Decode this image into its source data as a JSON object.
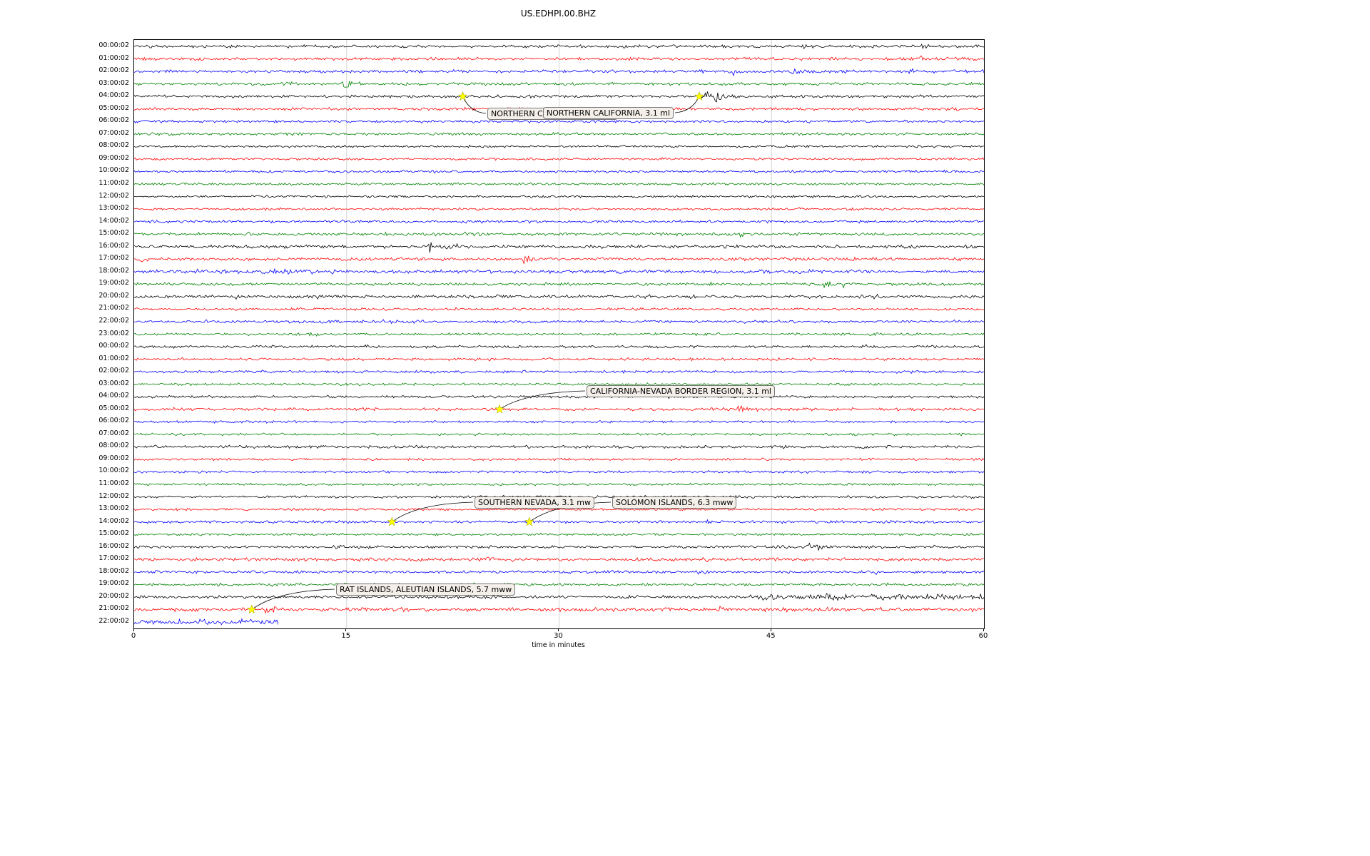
{
  "chart_data": {
    "type": "line",
    "subtype": "seismogram-helicorder",
    "title": "US.EDHPI.00.BHZ",
    "xlabel": "time in minutes",
    "xlim": [
      0,
      60
    ],
    "xticks": [
      0,
      15,
      30,
      45,
      60
    ],
    "grid": "vertical-only",
    "trace_colors": [
      "#000000",
      "#ff0000",
      "#0000ff",
      "#008000"
    ],
    "marker_color": "#ffff00",
    "rows": [
      {
        "label": "00:00:02",
        "noise": 1.1,
        "spikes": [
          [
            47.3,
            2.5,
            0.4
          ],
          [
            55.6,
            3.5,
            0.5
          ],
          [
            57.6,
            2.5,
            0.3
          ]
        ]
      },
      {
        "label": "01:00:02",
        "noise": 1.1,
        "spikes": [
          [
            52.0,
            2.5,
            0.4
          ],
          [
            55.4,
            4,
            0.6
          ],
          [
            57.5,
            3.5,
            0.5
          ]
        ]
      },
      {
        "label": "02:00:02",
        "noise": 1.1,
        "spikes": [
          [
            42.3,
            3.5,
            0.5
          ],
          [
            46.5,
            3,
            0.8
          ],
          [
            47.8,
            2.5,
            0.5
          ],
          [
            54.8,
            3,
            0.4
          ],
          [
            57.7,
            3,
            0.5
          ]
        ]
      },
      {
        "label": "03:00:02",
        "noise": 1.1,
        "spikes": [
          [
            10.4,
            2,
            0.5
          ],
          [
            14.8,
            6.5,
            0.5
          ]
        ]
      },
      {
        "label": "04:00:02",
        "noise": 1.1,
        "spikes": [
          [
            40.5,
            14,
            0.7
          ]
        ]
      },
      {
        "label": "05:00:02",
        "noise": 1.1,
        "spikes": [
          [
            27.1,
            6,
            0.3
          ]
        ]
      },
      {
        "label": "06:00:02",
        "noise": 1.0,
        "spikes": []
      },
      {
        "label": "07:00:02",
        "noise": 1.0,
        "spikes": []
      },
      {
        "label": "08:00:02",
        "noise": 0.9,
        "spikes": []
      },
      {
        "label": "09:00:02",
        "noise": 0.9,
        "spikes": []
      },
      {
        "label": "10:00:02",
        "noise": 0.9,
        "spikes": []
      },
      {
        "label": "11:00:02",
        "noise": 0.9,
        "spikes": []
      },
      {
        "label": "12:00:02",
        "noise": 0.9,
        "spikes": []
      },
      {
        "label": "13:00:02",
        "noise": 0.9,
        "spikes": []
      },
      {
        "label": "14:00:02",
        "noise": 1.0,
        "spikes": [
          [
            8,
            1.2,
            0.3
          ]
        ]
      },
      {
        "label": "15:00:02",
        "noise": 1.1,
        "spikes": [
          [
            8,
            1.8,
            0.4
          ],
          [
            23.5,
            2.2,
            0.8
          ],
          [
            25,
            2.2,
            0.6
          ],
          [
            38.3,
            2.2,
            0.4
          ],
          [
            42.8,
            2.8,
            0.4
          ]
        ]
      },
      {
        "label": "16:00:02",
        "noise": 1.2,
        "spikes": [
          [
            20.9,
            8,
            0.5
          ],
          [
            22.3,
            2.8,
            0.9
          ],
          [
            26,
            2.2,
            0.5
          ],
          [
            58.7,
            2.2,
            0.4
          ]
        ]
      },
      {
        "label": "17:00:02",
        "noise": 1.2,
        "spikes": [
          [
            0.5,
            3.5,
            0.4
          ],
          [
            1.3,
            2.5,
            0.3
          ],
          [
            15.2,
            2.5,
            0.3
          ],
          [
            27.6,
            6.5,
            0.4
          ]
        ]
      },
      {
        "label": "18:00:02",
        "noise": 1.3,
        "spikes": [
          [
            4.2,
            2.5,
            0.5
          ],
          [
            9,
            3.5,
            0.8
          ],
          [
            10.5,
            3.5,
            0.7
          ],
          [
            12.2,
            3,
            0.5
          ],
          [
            14,
            2.5,
            0.4
          ]
        ]
      },
      {
        "label": "19:00:02",
        "noise": 1.1,
        "spikes": [
          [
            48.8,
            4.5,
            0.8
          ],
          [
            50,
            3.5,
            0.6
          ]
        ]
      },
      {
        "label": "20:00:02",
        "noise": 1.2,
        "spikes": [
          [
            7.2,
            3.5,
            0.3
          ],
          [
            13,
            1.8,
            0.5
          ],
          [
            25,
            1.8,
            0.6
          ],
          [
            36.3,
            2.5,
            0.4
          ],
          [
            45,
            1.8,
            0.5
          ],
          [
            52.2,
            2.2,
            0.4
          ]
        ]
      },
      {
        "label": "21:00:02",
        "noise": 1.0,
        "spikes": [
          [
            31,
            1.3,
            0.4
          ]
        ]
      },
      {
        "label": "22:00:02",
        "noise": 1.1,
        "spikes": [
          [
            4.3,
            2.2,
            0.4
          ],
          [
            14.3,
            1.8,
            0.4
          ],
          [
            17.6,
            2.2,
            0.4
          ]
        ]
      },
      {
        "label": "23:00:02",
        "noise": 1.0,
        "spikes": [
          [
            12.9,
            1.8,
            0.5
          ]
        ]
      },
      {
        "label": "00:00:02",
        "noise": 1.0,
        "spikes": [
          [
            12.8,
            1.8,
            0.5
          ],
          [
            16.3,
            1.8,
            0.4
          ],
          [
            51.5,
            2.2,
            0.5
          ]
        ]
      },
      {
        "label": "01:00:02",
        "noise": 1.0,
        "spikes": [
          [
            35.5,
            2.2,
            0.3
          ],
          [
            39.3,
            2.2,
            0.3
          ]
        ]
      },
      {
        "label": "02:00:02",
        "noise": 1.0,
        "spikes": [
          [
            15.3,
            2.2,
            0.4
          ]
        ]
      },
      {
        "label": "03:00:02",
        "noise": 0.9,
        "spikes": []
      },
      {
        "label": "04:00:02",
        "noise": 1.0,
        "spikes": [
          [
            25.3,
            1.8,
            0.4
          ]
        ]
      },
      {
        "label": "05:00:02",
        "noise": 1.1,
        "spikes": [
          [
            16.2,
            2.8,
            0.3
          ],
          [
            16.8,
            2.8,
            0.3
          ],
          [
            40.7,
            2.8,
            0.5
          ],
          [
            41.5,
            2.8,
            0.4
          ],
          [
            42.7,
            9,
            0.25
          ],
          [
            44,
            2.8,
            0.4
          ]
        ]
      },
      {
        "label": "06:00:02",
        "noise": 0.9,
        "spikes": []
      },
      {
        "label": "07:00:02",
        "noise": 0.9,
        "spikes": []
      },
      {
        "label": "08:00:02",
        "noise": 1.1,
        "spikes": []
      },
      {
        "label": "09:00:02",
        "noise": 0.9,
        "spikes": []
      },
      {
        "label": "10:00:02",
        "noise": 0.9,
        "spikes": []
      },
      {
        "label": "11:00:02",
        "noise": 0.9,
        "spikes": []
      },
      {
        "label": "12:00:02",
        "noise": 0.9,
        "spikes": []
      },
      {
        "label": "13:00:02",
        "noise": 0.9,
        "spikes": []
      },
      {
        "label": "14:00:02",
        "noise": 1.0,
        "spikes": [
          [
            40.5,
            2.2,
            0.4
          ]
        ]
      },
      {
        "label": "15:00:02",
        "noise": 0.9,
        "spikes": []
      },
      {
        "label": "16:00:02",
        "noise": 1.1,
        "spikes": [
          [
            46.8,
            2.8,
            0.6
          ],
          [
            47.6,
            10,
            0.4
          ],
          [
            48.3,
            2.8,
            0.5
          ]
        ]
      },
      {
        "label": "17:00:02",
        "noise": 1.2,
        "spikes": [
          [
            8,
            2.2,
            0.4
          ],
          [
            10.8,
            2.2,
            0.4
          ],
          [
            25,
            2.2,
            0.6
          ],
          [
            26.5,
            2.2,
            0.5
          ],
          [
            33,
            2.2,
            0.4
          ],
          [
            40.2,
            2.8,
            0.6
          ],
          [
            41,
            2.8,
            0.4
          ],
          [
            44,
            2.8,
            0.3
          ],
          [
            50,
            2.2,
            0.4
          ]
        ]
      },
      {
        "label": "18:00:02",
        "noise": 1.0,
        "spikes": [
          [
            1.6,
            2.2,
            0.3
          ],
          [
            33.7,
            1.8,
            0.4
          ],
          [
            39.8,
            2.8,
            0.4
          ],
          [
            40.3,
            2.2,
            0.3
          ],
          [
            52.3,
            2.2,
            0.3
          ],
          [
            55.6,
            1.8,
            0.3
          ]
        ]
      },
      {
        "label": "19:00:02",
        "noise": 1.0,
        "spikes": [
          [
            6,
            2.2,
            0.5
          ],
          [
            9.8,
            2.8,
            0.4
          ]
        ]
      },
      {
        "label": "20:00:02",
        "noise": 1.1,
        "spikes": [
          [
            34.8,
            1.8,
            0.4
          ]
        ],
        "boost": [
          [
            43.5,
            60,
            2.0
          ]
        ]
      },
      {
        "label": "21:00:02",
        "noise": 1.4,
        "spikes": [
          [
            9.3,
            4.5,
            0.4
          ],
          [
            9.9,
            3.5,
            0.3
          ],
          [
            41.3,
            3.5,
            0.3
          ]
        ]
      },
      {
        "label": "22:00:02",
        "noise": 1.8,
        "spikes": [],
        "end": 10.2
      }
    ],
    "events": [
      {
        "text": "NORTHERN CALIFORNIA, 3.1 ml",
        "row": 4,
        "minute": 23.2,
        "box_x": 495,
        "box_y": 95,
        "attach": "left"
      },
      {
        "text": "NORTHERN CALIFORNIA, 3.1 ml",
        "row": 4,
        "minute": 39.9,
        "box_x": 573,
        "box_y": 94,
        "attach": "right"
      },
      {
        "text": "CALIFORNIA-NEVADA BORDER REGION, 3.1 ml",
        "row": 29,
        "minute": 25.8,
        "box_x": 634,
        "box_y": 484,
        "attach": "left"
      },
      {
        "text": "SOUTHERN NEVADA, 3.1 mw",
        "row": 38,
        "minute": 18.2,
        "box_x": 477,
        "box_y": 640,
        "attach": "left"
      },
      {
        "text": "SOLOMON ISLANDS, 6.3 mww",
        "row": 38,
        "minute": 27.9,
        "box_x": 670,
        "box_y": 640,
        "attach": "left"
      },
      {
        "text": "RAT ISLANDS, ALEUTIAN ISLANDS, 5.7 mww",
        "row": 45,
        "minute": 8.3,
        "box_x": 283,
        "box_y": 762,
        "attach": "left"
      }
    ]
  }
}
